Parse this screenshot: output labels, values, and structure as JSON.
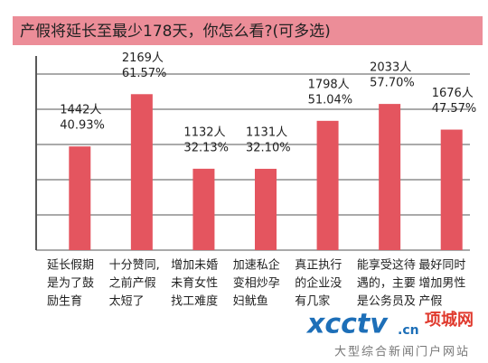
{
  "chart_data": {
    "type": "bar",
    "title": "产假将延长至最少178天，你怎么看?(可多选)",
    "categories": [
      [
        "延长假期",
        "是为了鼓",
        "励生育"
      ],
      [
        "十分赞同,",
        "之前产假",
        "太短了"
      ],
      [
        "增加未婚",
        "未育女性",
        "找工难度"
      ],
      [
        "加速私企",
        "变相炒孕",
        "妇鱿鱼"
      ],
      [
        "真正执行",
        "的企业没",
        "有几家"
      ],
      [
        "能享受这待",
        "遇的，主要",
        "是公务员及"
      ],
      [
        "最好同时",
        "增加男性",
        "产假"
      ]
    ],
    "values": [
      1442,
      2169,
      1132,
      1131,
      1798,
      2033,
      1676
    ],
    "value_labels": [
      "1442人",
      "2169人",
      "1132人",
      "1131人",
      "1798人",
      "2033人",
      "1676人"
    ],
    "percents": [
      40.93,
      61.57,
      32.13,
      32.1,
      51.04,
      57.7,
      47.57
    ],
    "percent_labels": [
      "40.93%",
      "61.57%",
      "32.13%",
      "32.10%",
      "51.04%",
      "57.70%",
      "47.57%"
    ],
    "color": "#e4555f",
    "ylim": [
      0,
      2700
    ],
    "grid": true
  },
  "watermark": {
    "logo": "xcctv",
    "domain": ".cn",
    "site": "项城网",
    "slogan": "大型综合新闻门户网站"
  }
}
